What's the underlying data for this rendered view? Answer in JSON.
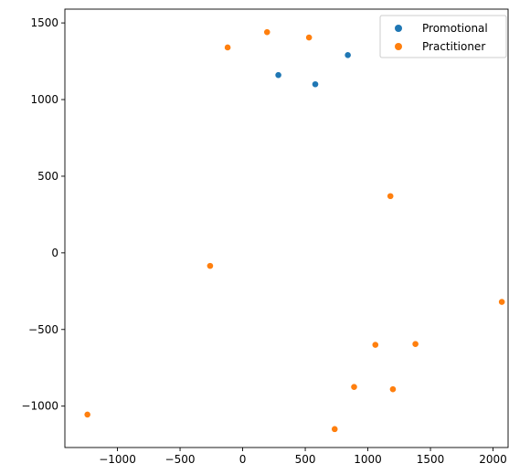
{
  "chart_data": {
    "type": "scatter",
    "title": "",
    "xlabel": "",
    "ylabel": "",
    "xlim": [
      -1420,
      2120
    ],
    "ylim": [
      -1270,
      1590
    ],
    "xticks": [
      -1000,
      -500,
      0,
      500,
      1000,
      1500,
      2000
    ],
    "xtick_labels": [
      "−1000",
      "−500",
      "0",
      "500",
      "1000",
      "1500",
      "2000"
    ],
    "yticks": [
      -1000,
      -500,
      0,
      500,
      1000,
      1500
    ],
    "ytick_labels": [
      "−1000",
      "−500",
      "0",
      "500",
      "1000",
      "1500"
    ],
    "grid": false,
    "legend_position": "top-right",
    "series": [
      {
        "name": "Promotional",
        "color": "#1f77b4",
        "points": [
          {
            "x": 285,
            "y": 1160
          },
          {
            "x": 580,
            "y": 1100
          },
          {
            "x": 840,
            "y": 1290
          }
        ]
      },
      {
        "name": "Practitioner",
        "color": "#ff7f0e",
        "points": [
          {
            "x": 195,
            "y": 1440
          },
          {
            "x": 530,
            "y": 1405
          },
          {
            "x": -120,
            "y": 1340
          },
          {
            "x": 1180,
            "y": 370
          },
          {
            "x": -260,
            "y": -85
          },
          {
            "x": 2070,
            "y": -320
          },
          {
            "x": 1060,
            "y": -600
          },
          {
            "x": 1380,
            "y": -595
          },
          {
            "x": 890,
            "y": -875
          },
          {
            "x": 1200,
            "y": -890
          },
          {
            "x": -1240,
            "y": -1055
          },
          {
            "x": 735,
            "y": -1150
          }
        ]
      }
    ]
  }
}
